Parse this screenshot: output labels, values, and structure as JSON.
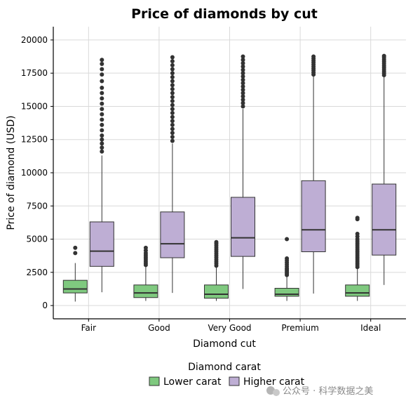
{
  "chart_data": {
    "type": "box",
    "title": "Price of diamonds by cut",
    "xlabel": "Diamond cut",
    "ylabel": "Price of diamond (USD)",
    "categories": [
      "Fair",
      "Good",
      "Very Good",
      "Premium",
      "Ideal"
    ],
    "ylim": [
      -1000,
      21000
    ],
    "yticks": [
      0,
      2500,
      5000,
      7500,
      10000,
      12500,
      15000,
      17500,
      20000
    ],
    "ytick_labels": [
      "0",
      "2500",
      "5000",
      "7500",
      "10000",
      "12500",
      "15000",
      "17500",
      "20000"
    ],
    "grid": true,
    "legend_title": "Diamond carat",
    "legend_position": "bottom",
    "series": [
      {
        "name": "Lower carat",
        "color": "#7fc97f",
        "boxes": [
          {
            "whisker_low": 300,
            "q1": 950,
            "median": 1250,
            "q3": 1900,
            "whisker_high": 3200,
            "outliers_high": [
              3950,
              4350
            ],
            "outliers_low": []
          },
          {
            "whisker_low": 350,
            "q1": 600,
            "median": 950,
            "q3": 1550,
            "whisker_high": 2950,
            "outliers_high": [
              3050,
              3200,
              3350,
              3500,
              3650,
              3800,
              3950,
              4150,
              4350
            ],
            "outliers_low": []
          },
          {
            "whisker_low": 350,
            "q1": 550,
            "median": 850,
            "q3": 1550,
            "whisker_high": 2950,
            "outliers_high": [
              3000,
              3150,
              3300,
              3450,
              3600,
              3750,
              3900,
              4050,
              4200,
              4350,
              4500,
              4650,
              4780
            ],
            "outliers_low": []
          },
          {
            "whisker_low": 350,
            "q1": 700,
            "median": 850,
            "q3": 1300,
            "whisker_high": 2200,
            "outliers_high": [
              2300,
              2400,
              2500,
              2600,
              2700,
              2800,
              2950,
              3100,
              3250,
              3400,
              3550,
              5000
            ],
            "outliers_low": []
          },
          {
            "whisker_low": 350,
            "q1": 700,
            "median": 950,
            "q3": 1550,
            "whisker_high": 2800,
            "outliers_high": [
              2900,
              3050,
              3200,
              3350,
              3500,
              3650,
              3800,
              3950,
              4100,
              4250,
              4400,
              4550,
              4700,
              4850,
              5000,
              5200,
              5400,
              6500,
              6600
            ],
            "outliers_low": []
          }
        ]
      },
      {
        "name": "Higher carat",
        "color": "#beaed4",
        "boxes": [
          {
            "whisker_low": 1000,
            "q1": 2950,
            "median": 4100,
            "q3": 6300,
            "whisker_high": 11300,
            "outliers_high": [
              11600,
              11900,
              12200,
              12500,
              12800,
              13200,
              13600,
              14000,
              14400,
              14800,
              15200,
              15600,
              16000,
              16400,
              16900,
              17400,
              17800,
              18200,
              18500
            ],
            "outliers_low": []
          },
          {
            "whisker_low": 950,
            "q1": 3600,
            "median": 4650,
            "q3": 7050,
            "whisker_high": 12200,
            "outliers_high": [
              12400,
              12700,
              13000,
              13300,
              13600,
              13900,
              14200,
              14500,
              14800,
              15100,
              15400,
              15700,
              16000,
              16300,
              16600,
              16900,
              17200,
              17500,
              17800,
              18100,
              18400,
              18700
            ],
            "outliers_low": []
          },
          {
            "whisker_low": 1250,
            "q1": 3700,
            "median": 5100,
            "q3": 8150,
            "whisker_high": 14800,
            "outliers_high": [
              15000,
              15250,
              15500,
              15750,
              16000,
              16250,
              16500,
              16750,
              17000,
              17250,
              17500,
              17750,
              18000,
              18250,
              18500,
              18750
            ],
            "outliers_low": []
          },
          {
            "whisker_low": 900,
            "q1": 4050,
            "median": 5700,
            "q3": 9400,
            "whisker_high": 17300,
            "outliers_high": [
              17400,
              17550,
              17700,
              17850,
              18000,
              18150,
              18300,
              18450,
              18600,
              18750
            ],
            "outliers_low": []
          },
          {
            "whisker_low": 1550,
            "q1": 3800,
            "median": 5700,
            "q3": 9150,
            "whisker_high": 17200,
            "outliers_high": [
              17350,
              17500,
              17650,
              17800,
              17950,
              18100,
              18250,
              18400,
              18550,
              18700,
              18800
            ],
            "outliers_low": []
          }
        ]
      }
    ]
  },
  "watermark": "公众号 · 科学数据之美"
}
